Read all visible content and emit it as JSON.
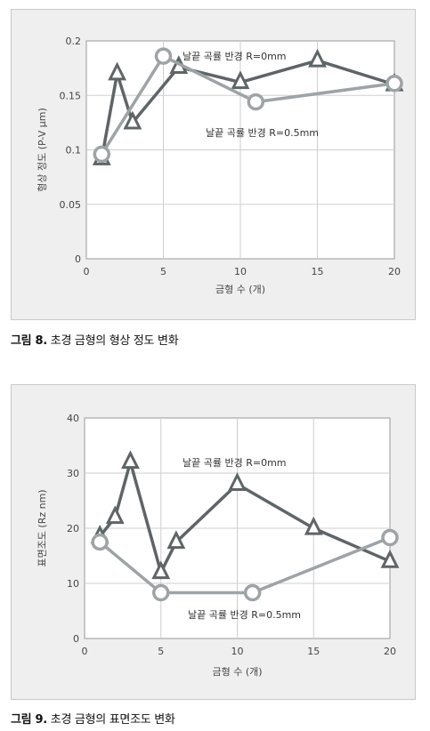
{
  "figures": [
    {
      "caption_label": "그림 8.",
      "caption_text": "초경 금형의 형상 정도 변화"
    },
    {
      "caption_label": "그림 9.",
      "caption_text": "초경 금형의 표면조도 변화"
    }
  ],
  "colors": {
    "series_r0": "#5f6567",
    "series_r05": "#9ea3a5",
    "panel_bg": "#efefef",
    "plot_bg": "#ffffff"
  },
  "chart_data": [
    {
      "type": "line",
      "title": "",
      "xlabel": "금형 수 (개)",
      "ylabel": "형상 정도 (P-V μm)",
      "xlim": [
        0,
        20
      ],
      "ylim": [
        0,
        0.2
      ],
      "xticks": [
        "0",
        "5",
        "10",
        "15",
        "20"
      ],
      "yticks": [
        "0",
        "0.05",
        "0.1",
        "0.15",
        "0.2"
      ],
      "grid": true,
      "series": [
        {
          "name": "날끝 곡률 반경 R=0mm",
          "marker": "triangle",
          "x": [
            1,
            2,
            3,
            6,
            10,
            15,
            20
          ],
          "y": [
            0.092,
            0.17,
            0.125,
            0.176,
            0.162,
            0.182,
            0.16
          ]
        },
        {
          "name": "날끝 곡률 반경 R=0.5mm",
          "marker": "circle",
          "x": [
            1,
            5,
            11,
            20
          ],
          "y": [
            0.096,
            0.186,
            0.144,
            0.161
          ]
        }
      ]
    },
    {
      "type": "line",
      "title": "",
      "xlabel": "금형 수 (개)",
      "ylabel": "표면조도 (Rz nm)",
      "xlim": [
        0,
        20
      ],
      "ylim": [
        0,
        40
      ],
      "xticks": [
        "0",
        "5",
        "10",
        "15",
        "20"
      ],
      "yticks": [
        "0",
        "10",
        "20",
        "30",
        "40"
      ],
      "grid": true,
      "series": [
        {
          "name": "날끝 곡률 반경 R=0mm",
          "marker": "triangle",
          "x": [
            1,
            2,
            3,
            5,
            6,
            10,
            15,
            20
          ],
          "y": [
            18.5,
            22,
            32,
            12,
            17.5,
            28,
            20,
            14
          ]
        },
        {
          "name": "날끝 곡률 반경 R=0.5mm",
          "marker": "circle",
          "x": [
            1,
            5,
            11,
            20
          ],
          "y": [
            17.5,
            8.3,
            8.3,
            18.3
          ]
        }
      ]
    }
  ]
}
